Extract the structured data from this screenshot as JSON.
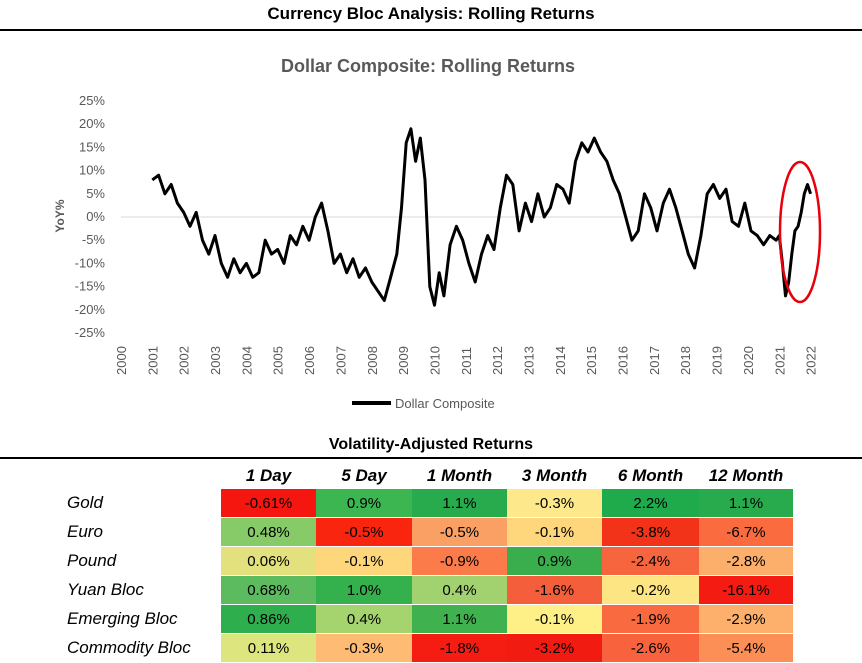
{
  "page_title": "Currency Bloc Analysis: Rolling Returns",
  "chart_data": {
    "type": "line",
    "title": "Dollar Composite: Rolling Returns",
    "ylabel": "YoY%",
    "xlabel": "",
    "ylim": [
      -25,
      25
    ],
    "yticks": [
      25,
      20,
      15,
      10,
      5,
      0,
      -5,
      -10,
      -15,
      -20,
      -25
    ],
    "ytick_labels": [
      "25%",
      "20%",
      "15%",
      "10%",
      "5%",
      "0%",
      "-5%",
      "-10%",
      "-15%",
      "-20%",
      "-25%"
    ],
    "xlim": [
      2000,
      2022.3
    ],
    "xticks": [
      "2000",
      "2001",
      "2002",
      "2003",
      "2004",
      "2005",
      "2006",
      "2007",
      "2008",
      "2009",
      "2010",
      "2011",
      "2012",
      "2013",
      "2014",
      "2015",
      "2016",
      "2017",
      "2018",
      "2019",
      "2020",
      "2021",
      "2022"
    ],
    "legend_position": "bottom",
    "series": [
      {
        "name": "Dollar Composite",
        "color": "#000000",
        "x": [
          2001.0,
          2001.2,
          2001.4,
          2001.6,
          2001.8,
          2002.0,
          2002.2,
          2002.4,
          2002.6,
          2002.8,
          2003.0,
          2003.2,
          2003.4,
          2003.6,
          2003.8,
          2004.0,
          2004.2,
          2004.4,
          2004.6,
          2004.8,
          2005.0,
          2005.2,
          2005.4,
          2005.6,
          2005.8,
          2006.0,
          2006.2,
          2006.4,
          2006.6,
          2006.8,
          2007.0,
          2007.2,
          2007.4,
          2007.6,
          2007.8,
          2008.0,
          2008.2,
          2008.4,
          2008.6,
          2008.8,
          2008.95,
          2009.1,
          2009.25,
          2009.4,
          2009.55,
          2009.7,
          2009.85,
          2010.0,
          2010.15,
          2010.3,
          2010.5,
          2010.7,
          2010.9,
          2011.1,
          2011.3,
          2011.5,
          2011.7,
          2011.9,
          2012.1,
          2012.3,
          2012.5,
          2012.7,
          2012.9,
          2013.1,
          2013.3,
          2013.5,
          2013.7,
          2013.9,
          2014.1,
          2014.3,
          2014.5,
          2014.7,
          2014.9,
          2015.1,
          2015.3,
          2015.5,
          2015.7,
          2015.9,
          2016.1,
          2016.3,
          2016.5,
          2016.7,
          2016.9,
          2017.1,
          2017.3,
          2017.5,
          2017.7,
          2017.9,
          2018.1,
          2018.3,
          2018.5,
          2018.7,
          2018.9,
          2019.1,
          2019.3,
          2019.5,
          2019.7,
          2019.9,
          2020.1,
          2020.3,
          2020.5,
          2020.7,
          2020.9,
          2021.0,
          2021.1,
          2021.2,
          2021.3,
          2021.4,
          2021.5,
          2021.6,
          2021.7,
          2021.8,
          2021.9,
          2022.0
        ],
        "y": [
          8,
          9,
          5,
          7,
          3,
          1,
          -2,
          1,
          -5,
          -8,
          -4,
          -10,
          -13,
          -9,
          -12,
          -10,
          -13,
          -12,
          -5,
          -8,
          -7,
          -10,
          -4,
          -6,
          -2,
          -5,
          0,
          3,
          -3,
          -10,
          -8,
          -12,
          -9,
          -13,
          -11,
          -14,
          -16,
          -18,
          -13,
          -8,
          2,
          16,
          19,
          12,
          17,
          8,
          -15,
          -19,
          -12,
          -17,
          -6,
          -2,
          -5,
          -10,
          -14,
          -8,
          -4,
          -7,
          2,
          9,
          7,
          -3,
          3,
          -1,
          5,
          0,
          2,
          7,
          6,
          3,
          12,
          16,
          14,
          17,
          14,
          12,
          8,
          5,
          0,
          -5,
          -3,
          5,
          2,
          -3,
          3,
          6,
          2,
          -3,
          -8,
          -11,
          -4,
          5,
          7,
          4,
          6,
          -1,
          -2,
          3,
          -3,
          -4,
          -6,
          -4,
          -5,
          -4,
          -10,
          -17,
          -14,
          -8,
          -3,
          -2,
          1,
          5,
          7,
          5
        ],
        "annotation": "red-ellipse"
      }
    ]
  },
  "table": {
    "title": "Volatility-Adjusted Returns",
    "columns": [
      "1 Day",
      "5 Day",
      "1 Month",
      "3 Month",
      "6 Month",
      "12 Month"
    ],
    "rows": [
      {
        "label": "Gold",
        "values": [
          "-0.61%",
          "0.9%",
          "1.1%",
          "-0.3%",
          "2.2%",
          "1.1%"
        ],
        "colors": [
          "#f4160f",
          "#3bb651",
          "#27ab4c",
          "#fde98c",
          "#1faa4b",
          "#27ab4c"
        ]
      },
      {
        "label": "Euro",
        "values": [
          "0.48%",
          "-0.5%",
          "-0.5%",
          "-0.1%",
          "-3.8%",
          "-6.7%"
        ],
        "colors": [
          "#87ca68",
          "#f9250f",
          "#fba064",
          "#fed67b",
          "#f3321a",
          "#fa6b3f"
        ]
      },
      {
        "label": "Pound",
        "values": [
          "0.06%",
          "-0.1%",
          "-0.9%",
          "0.9%",
          "-2.4%",
          "-2.8%"
        ],
        "colors": [
          "#e2e17e",
          "#fed67b",
          "#fb7b4b",
          "#3aae4c",
          "#f7653f",
          "#fcae6b"
        ]
      },
      {
        "label": "Yuan Bloc",
        "values": [
          "0.68%",
          "1.0%",
          "0.4%",
          "-1.6%",
          "-0.2%",
          "-16.1%"
        ],
        "colors": [
          "#5cbb5e",
          "#34b04c",
          "#a2d26f",
          "#f45e3a",
          "#fde583",
          "#f41c12"
        ]
      },
      {
        "label": "Emerging Bloc",
        "values": [
          "0.86%",
          "0.4%",
          "1.1%",
          "-0.1%",
          "-1.9%",
          "-2.9%"
        ],
        "colors": [
          "#2eae4c",
          "#a5d46f",
          "#3fb14e",
          "#fef086",
          "#f96a40",
          "#fcb06c"
        ]
      },
      {
        "label": "Commodity Bloc",
        "values": [
          "0.11%",
          "-0.3%",
          "-1.8%",
          "-3.2%",
          "-2.6%",
          "-5.4%"
        ],
        "colors": [
          "#dde57f",
          "#fdbb74",
          "#f51c12",
          "#f11b11",
          "#f8633e",
          "#fc8f56"
        ]
      }
    ]
  }
}
